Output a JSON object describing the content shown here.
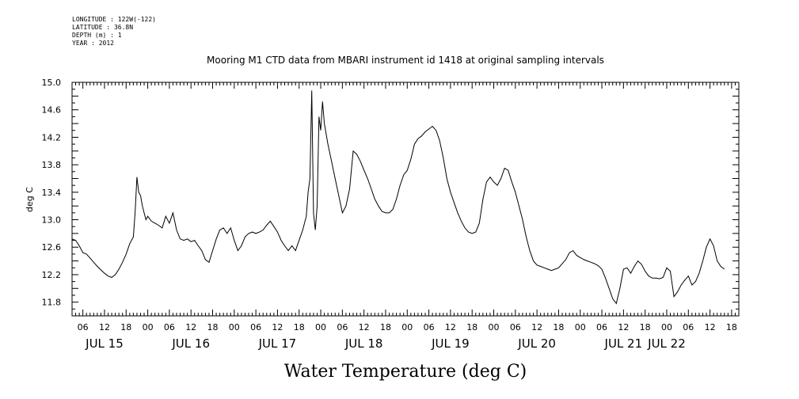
{
  "meta": [
    "LONGITUDE : 122W(-122)",
    "LATITUDE : 36.8N",
    "DEPTH (m) : 1",
    "YEAR : 2012"
  ],
  "chart_data": {
    "type": "line",
    "title": "Mooring M1 CTD data from MBARI instrument id 1418 at original sampling intervals",
    "xlabel": "Water Temperature (deg C)",
    "ylabel": "deg C",
    "ylim": [
      11.6,
      15.0
    ],
    "xlim_hours": [
      3,
      188
    ],
    "yticks": [
      "11.8",
      "12.2",
      "12.6",
      "13.0",
      "13.4",
      "13.8",
      "14.2",
      "14.6",
      "15.0"
    ],
    "hour_labels": [
      "06",
      "12",
      "18",
      "00",
      "06",
      "12",
      "18",
      "00",
      "06",
      "12",
      "18",
      "00",
      "06",
      "12",
      "18",
      "00",
      "06",
      "12",
      "18",
      "00",
      "06",
      "12",
      "18",
      "00",
      "06",
      "12",
      "18",
      "00",
      "06",
      "12",
      "18",
      "00"
    ],
    "day_labels": [
      "JUL 15",
      "JUL 16",
      "JUL 17",
      "JUL 18",
      "JUL 19",
      "JUL 20",
      "JUL 21",
      "JUL 22"
    ],
    "grid": false,
    "series": [
      {
        "color": "#000000",
        "points": [
          [
            3,
            12.72
          ],
          [
            4,
            12.7
          ],
          [
            5,
            12.62
          ],
          [
            6,
            12.52
          ],
          [
            7,
            12.5
          ],
          [
            8,
            12.44
          ],
          [
            9,
            12.38
          ],
          [
            10,
            12.32
          ],
          [
            11,
            12.27
          ],
          [
            12,
            12.22
          ],
          [
            13,
            12.18
          ],
          [
            14,
            12.16
          ],
          [
            15,
            12.2
          ],
          [
            16,
            12.28
          ],
          [
            17,
            12.38
          ],
          [
            18,
            12.5
          ],
          [
            19,
            12.65
          ],
          [
            20,
            12.75
          ],
          [
            20.5,
            13.1
          ],
          [
            21,
            13.62
          ],
          [
            21.5,
            13.4
          ],
          [
            22,
            13.35
          ],
          [
            22.5,
            13.2
          ],
          [
            23,
            13.1
          ],
          [
            23.5,
            13.0
          ],
          [
            24,
            13.05
          ],
          [
            25,
            12.98
          ],
          [
            26,
            12.95
          ],
          [
            27,
            12.92
          ],
          [
            28,
            12.88
          ],
          [
            29,
            13.05
          ],
          [
            30,
            12.95
          ],
          [
            31,
            13.1
          ],
          [
            32,
            12.85
          ],
          [
            33,
            12.72
          ],
          [
            34,
            12.7
          ],
          [
            35,
            12.72
          ],
          [
            36,
            12.68
          ],
          [
            37,
            12.7
          ],
          [
            38,
            12.62
          ],
          [
            39,
            12.55
          ],
          [
            40,
            12.42
          ],
          [
            41,
            12.38
          ],
          [
            42,
            12.55
          ],
          [
            43,
            12.72
          ],
          [
            44,
            12.85
          ],
          [
            45,
            12.88
          ],
          [
            46,
            12.8
          ],
          [
            47,
            12.88
          ],
          [
            48,
            12.7
          ],
          [
            49,
            12.55
          ],
          [
            50,
            12.62
          ],
          [
            51,
            12.75
          ],
          [
            52,
            12.8
          ],
          [
            53,
            12.82
          ],
          [
            54,
            12.8
          ],
          [
            55,
            12.82
          ],
          [
            56,
            12.85
          ],
          [
            57,
            12.92
          ],
          [
            58,
            12.98
          ],
          [
            59,
            12.9
          ],
          [
            60,
            12.82
          ],
          [
            61,
            12.7
          ],
          [
            62,
            12.62
          ],
          [
            63,
            12.55
          ],
          [
            64,
            12.62
          ],
          [
            65,
            12.55
          ],
          [
            66,
            12.7
          ],
          [
            67,
            12.85
          ],
          [
            68,
            13.05
          ],
          [
            68.5,
            13.4
          ],
          [
            69,
            13.6
          ],
          [
            69.5,
            14.88
          ],
          [
            70,
            13.1
          ],
          [
            70.5,
            12.85
          ],
          [
            71,
            13.2
          ],
          [
            71.5,
            14.5
          ],
          [
            72,
            14.3
          ],
          [
            72.5,
            14.72
          ],
          [
            73,
            14.4
          ],
          [
            74,
            14.1
          ],
          [
            75,
            13.85
          ],
          [
            76,
            13.6
          ],
          [
            77,
            13.35
          ],
          [
            78,
            13.1
          ],
          [
            79,
            13.2
          ],
          [
            80,
            13.45
          ],
          [
            81,
            14.0
          ],
          [
            82,
            13.95
          ],
          [
            83,
            13.85
          ],
          [
            84,
            13.72
          ],
          [
            85,
            13.6
          ],
          [
            86,
            13.45
          ],
          [
            87,
            13.3
          ],
          [
            88,
            13.2
          ],
          [
            89,
            13.12
          ],
          [
            90,
            13.1
          ],
          [
            91,
            13.1
          ],
          [
            92,
            13.15
          ],
          [
            93,
            13.3
          ],
          [
            94,
            13.5
          ],
          [
            95,
            13.65
          ],
          [
            96,
            13.72
          ],
          [
            97,
            13.88
          ],
          [
            98,
            14.1
          ],
          [
            99,
            14.18
          ],
          [
            100,
            14.22
          ],
          [
            101,
            14.28
          ],
          [
            102,
            14.32
          ],
          [
            103,
            14.36
          ],
          [
            104,
            14.3
          ],
          [
            105,
            14.15
          ],
          [
            106,
            13.9
          ],
          [
            107,
            13.6
          ],
          [
            108,
            13.4
          ],
          [
            109,
            13.25
          ],
          [
            110,
            13.1
          ],
          [
            111,
            12.98
          ],
          [
            112,
            12.88
          ],
          [
            113,
            12.82
          ],
          [
            114,
            12.8
          ],
          [
            115,
            12.82
          ],
          [
            116,
            12.95
          ],
          [
            117,
            13.3
          ],
          [
            118,
            13.55
          ],
          [
            119,
            13.62
          ],
          [
            120,
            13.55
          ],
          [
            121,
            13.5
          ],
          [
            122,
            13.6
          ],
          [
            123,
            13.75
          ],
          [
            124,
            13.72
          ],
          [
            125,
            13.55
          ],
          [
            126,
            13.4
          ],
          [
            127,
            13.2
          ],
          [
            128,
            13.0
          ],
          [
            129,
            12.75
          ],
          [
            130,
            12.55
          ],
          [
            131,
            12.4
          ],
          [
            132,
            12.34
          ],
          [
            133,
            12.32
          ],
          [
            134,
            12.3
          ],
          [
            135,
            12.28
          ],
          [
            136,
            12.26
          ],
          [
            137,
            12.28
          ],
          [
            138,
            12.3
          ],
          [
            139,
            12.36
          ],
          [
            140,
            12.42
          ],
          [
            141,
            12.52
          ],
          [
            142,
            12.55
          ],
          [
            143,
            12.48
          ],
          [
            144,
            12.45
          ],
          [
            145,
            12.42
          ],
          [
            146,
            12.4
          ],
          [
            147,
            12.38
          ],
          [
            148,
            12.36
          ],
          [
            149,
            12.33
          ],
          [
            150,
            12.28
          ],
          [
            151,
            12.15
          ],
          [
            152,
            12.0
          ],
          [
            153,
            11.85
          ],
          [
            154,
            11.78
          ],
          [
            155,
            12.0
          ],
          [
            156,
            12.28
          ],
          [
            157,
            12.3
          ],
          [
            158,
            12.22
          ],
          [
            159,
            12.32
          ],
          [
            160,
            12.4
          ],
          [
            161,
            12.35
          ],
          [
            162,
            12.25
          ],
          [
            163,
            12.18
          ],
          [
            164,
            12.15
          ],
          [
            165,
            12.15
          ],
          [
            166,
            12.14
          ],
          [
            167,
            12.16
          ],
          [
            168,
            12.3
          ],
          [
            169,
            12.25
          ],
          [
            170,
            11.88
          ],
          [
            171,
            11.95
          ],
          [
            172,
            12.05
          ],
          [
            173,
            12.12
          ],
          [
            174,
            12.18
          ],
          [
            175,
            12.05
          ],
          [
            176,
            12.1
          ],
          [
            177,
            12.22
          ],
          [
            178,
            12.4
          ],
          [
            179,
            12.6
          ],
          [
            180,
            12.72
          ],
          [
            181,
            12.62
          ],
          [
            182,
            12.4
          ],
          [
            183,
            12.32
          ],
          [
            184,
            12.28
          ]
        ]
      }
    ]
  }
}
